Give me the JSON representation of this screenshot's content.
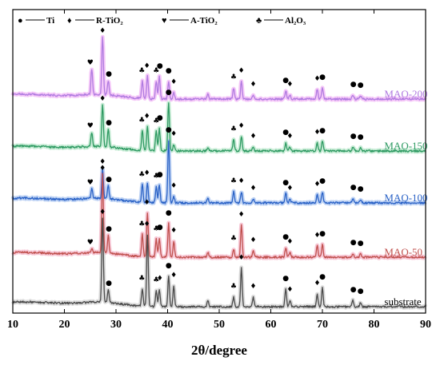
{
  "chart_data": {
    "type": "line",
    "title": "",
    "xlabel": "2θ/degree",
    "ylabel": "",
    "xlim": [
      10,
      90
    ],
    "x_ticks": [
      10,
      20,
      30,
      40,
      50,
      60,
      70,
      80,
      90
    ],
    "y_ticks_shown": false,
    "grid": false,
    "legend_position": "top-left",
    "legend": [
      {
        "symbol": "●",
        "label": "Ti",
        "marker_key": "Ti"
      },
      {
        "symbol": "♦",
        "label": "R-TiO₂",
        "marker_key": "R"
      },
      {
        "symbol": "♥",
        "label": "A-TiO₂",
        "marker_key": "A"
      },
      {
        "symbol": "♣",
        "label": "Al₂O₃",
        "marker_key": "Al"
      }
    ],
    "series": [
      {
        "name": "MAO-200",
        "color": "#b07be0",
        "shade": "#f1b6f6",
        "label_x": 82,
        "baseline": 2.6,
        "noise": 0.025,
        "peaks": [
          {
            "x": 25.3,
            "h": 0.32
          },
          {
            "x": 27.4,
            "h": 0.72
          },
          {
            "x": 28.5,
            "h": 0.18
          },
          {
            "x": 35.1,
            "h": 0.22
          },
          {
            "x": 36.1,
            "h": 0.28
          },
          {
            "x": 37.8,
            "h": 0.22
          },
          {
            "x": 38.4,
            "h": 0.28
          },
          {
            "x": 40.2,
            "h": 0.22
          },
          {
            "x": 41.2,
            "h": 0.08
          },
          {
            "x": 47.8,
            "h": 0.06
          },
          {
            "x": 52.8,
            "h": 0.14
          },
          {
            "x": 54.3,
            "h": 0.22
          },
          {
            "x": 56.6,
            "h": 0.05
          },
          {
            "x": 62.9,
            "h": 0.1
          },
          {
            "x": 63.7,
            "h": 0.05
          },
          {
            "x": 69.0,
            "h": 0.12
          },
          {
            "x": 70.0,
            "h": 0.14
          },
          {
            "x": 75.9,
            "h": 0.05
          },
          {
            "x": 77.4,
            "h": 0.04
          }
        ],
        "markers": [
          {
            "x": 25.0,
            "sym": "♥"
          },
          {
            "x": 27.4,
            "sym": "♦"
          },
          {
            "x": 28.6,
            "sym": "●"
          },
          {
            "x": 35.0,
            "sym": "♣"
          },
          {
            "x": 36.0,
            "sym": "♦"
          },
          {
            "x": 37.8,
            "sym": "♣"
          },
          {
            "x": 38.5,
            "sym": "●"
          },
          {
            "x": 40.2,
            "sym": "●"
          },
          {
            "x": 41.2,
            "sym": "♦"
          },
          {
            "x": 52.8,
            "sym": "♣"
          },
          {
            "x": 54.3,
            "sym": "♦"
          },
          {
            "x": 56.6,
            "sym": "♦"
          },
          {
            "x": 62.9,
            "sym": "●"
          },
          {
            "x": 63.7,
            "sym": "♦"
          },
          {
            "x": 69.0,
            "sym": "♦"
          },
          {
            "x": 70.0,
            "sym": "●"
          },
          {
            "x": 76.0,
            "sym": "●"
          },
          {
            "x": 77.4,
            "sym": "●"
          }
        ]
      },
      {
        "name": "MAO-150",
        "color": "#2e9a62",
        "shade": "#b6e6c8",
        "label_x": 82,
        "baseline": 1.95,
        "noise": 0.025,
        "peaks": [
          {
            "x": 25.3,
            "h": 0.18
          },
          {
            "x": 27.4,
            "h": 0.52
          },
          {
            "x": 28.5,
            "h": 0.22
          },
          {
            "x": 35.1,
            "h": 0.25
          },
          {
            "x": 36.1,
            "h": 0.3
          },
          {
            "x": 37.8,
            "h": 0.24
          },
          {
            "x": 38.4,
            "h": 0.28
          },
          {
            "x": 40.2,
            "h": 0.6
          },
          {
            "x": 41.2,
            "h": 0.08
          },
          {
            "x": 47.8,
            "h": 0.05
          },
          {
            "x": 52.8,
            "h": 0.14
          },
          {
            "x": 54.3,
            "h": 0.18
          },
          {
            "x": 56.6,
            "h": 0.05
          },
          {
            "x": 62.9,
            "h": 0.1
          },
          {
            "x": 63.7,
            "h": 0.05
          },
          {
            "x": 69.0,
            "h": 0.1
          },
          {
            "x": 70.0,
            "h": 0.12
          },
          {
            "x": 75.9,
            "h": 0.05
          },
          {
            "x": 77.4,
            "h": 0.04
          }
        ],
        "markers": [
          {
            "x": 25.0,
            "sym": "♥"
          },
          {
            "x": 27.4,
            "sym": "♦"
          },
          {
            "x": 28.6,
            "sym": "●"
          },
          {
            "x": 35.0,
            "sym": "♣"
          },
          {
            "x": 36.0,
            "sym": "♦"
          },
          {
            "x": 37.8,
            "sym": "♣"
          },
          {
            "x": 38.5,
            "sym": "●"
          },
          {
            "x": 40.2,
            "sym": "●"
          },
          {
            "x": 41.2,
            "sym": "♦"
          },
          {
            "x": 52.8,
            "sym": "♣"
          },
          {
            "x": 54.3,
            "sym": "♦"
          },
          {
            "x": 56.6,
            "sym": "♦"
          },
          {
            "x": 62.9,
            "sym": "●"
          },
          {
            "x": 63.7,
            "sym": "♦"
          },
          {
            "x": 69.0,
            "sym": "♦"
          },
          {
            "x": 70.0,
            "sym": "●"
          },
          {
            "x": 76.0,
            "sym": "●"
          },
          {
            "x": 77.4,
            "sym": "●"
          }
        ]
      },
      {
        "name": "MAO-100",
        "color": "#2a62c6",
        "shade": "#a9c4f0",
        "label_x": 82,
        "baseline": 1.3,
        "noise": 0.025,
        "peaks": [
          {
            "x": 25.3,
            "h": 0.12
          },
          {
            "x": 27.4,
            "h": 0.38
          },
          {
            "x": 28.5,
            "h": 0.16
          },
          {
            "x": 35.1,
            "h": 0.22
          },
          {
            "x": 36.1,
            "h": 0.24
          },
          {
            "x": 37.8,
            "h": 0.2
          },
          {
            "x": 38.4,
            "h": 0.22
          },
          {
            "x": 40.2,
            "h": 0.78
          },
          {
            "x": 41.2,
            "h": 0.08
          },
          {
            "x": 47.8,
            "h": 0.05
          },
          {
            "x": 52.8,
            "h": 0.14
          },
          {
            "x": 54.3,
            "h": 0.14
          },
          {
            "x": 56.6,
            "h": 0.05
          },
          {
            "x": 62.9,
            "h": 0.12
          },
          {
            "x": 63.7,
            "h": 0.05
          },
          {
            "x": 69.0,
            "h": 0.1
          },
          {
            "x": 70.0,
            "h": 0.14
          },
          {
            "x": 75.9,
            "h": 0.06
          },
          {
            "x": 77.4,
            "h": 0.04
          }
        ],
        "markers": [
          {
            "x": 25.0,
            "sym": "♥"
          },
          {
            "x": 27.4,
            "sym": "♦"
          },
          {
            "x": 28.6,
            "sym": "●"
          },
          {
            "x": 35.0,
            "sym": "♣"
          },
          {
            "x": 36.0,
            "sym": "♦"
          },
          {
            "x": 37.8,
            "sym": "♣"
          },
          {
            "x": 38.5,
            "sym": "●"
          },
          {
            "x": 40.2,
            "sym": "●"
          },
          {
            "x": 41.2,
            "sym": "♦"
          },
          {
            "x": 52.8,
            "sym": "♣"
          },
          {
            "x": 54.3,
            "sym": "♦"
          },
          {
            "x": 56.6,
            "sym": "♦"
          },
          {
            "x": 62.9,
            "sym": "●"
          },
          {
            "x": 63.7,
            "sym": "♦"
          },
          {
            "x": 69.0,
            "sym": "♦"
          },
          {
            "x": 70.0,
            "sym": "●"
          },
          {
            "x": 76.0,
            "sym": "●"
          },
          {
            "x": 77.4,
            "sym": "●"
          }
        ]
      },
      {
        "name": "MAO-50",
        "color": "#c0504d",
        "shade": "#f4b6c8",
        "label_x": 82,
        "baseline": 0.62,
        "noise": 0.025,
        "peaks": [
          {
            "x": 25.3,
            "h": 0.05
          },
          {
            "x": 27.4,
            "h": 0.98
          },
          {
            "x": 28.5,
            "h": 0.22
          },
          {
            "x": 35.1,
            "h": 0.28
          },
          {
            "x": 36.1,
            "h": 0.55
          },
          {
            "x": 37.8,
            "h": 0.22
          },
          {
            "x": 38.4,
            "h": 0.24
          },
          {
            "x": 40.2,
            "h": 0.42
          },
          {
            "x": 41.2,
            "h": 0.2
          },
          {
            "x": 47.8,
            "h": 0.06
          },
          {
            "x": 52.8,
            "h": 0.1
          },
          {
            "x": 54.3,
            "h": 0.4
          },
          {
            "x": 56.6,
            "h": 0.08
          },
          {
            "x": 62.9,
            "h": 0.12
          },
          {
            "x": 63.7,
            "h": 0.06
          },
          {
            "x": 69.0,
            "h": 0.14
          },
          {
            "x": 70.0,
            "h": 0.16
          },
          {
            "x": 75.9,
            "h": 0.05
          },
          {
            "x": 77.4,
            "h": 0.04
          }
        ],
        "markers": [
          {
            "x": 25.0,
            "sym": "♥"
          },
          {
            "x": 27.4,
            "sym": "♦"
          },
          {
            "x": 28.6,
            "sym": "●"
          },
          {
            "x": 35.0,
            "sym": "♣"
          },
          {
            "x": 36.0,
            "sym": "♦"
          },
          {
            "x": 37.8,
            "sym": "♣"
          },
          {
            "x": 38.5,
            "sym": "●"
          },
          {
            "x": 40.2,
            "sym": "●"
          },
          {
            "x": 41.2,
            "sym": "♦"
          },
          {
            "x": 52.8,
            "sym": "♣"
          },
          {
            "x": 54.3,
            "sym": "♦"
          },
          {
            "x": 56.6,
            "sym": "♦"
          },
          {
            "x": 62.9,
            "sym": "●"
          },
          {
            "x": 63.7,
            "sym": "♦"
          },
          {
            "x": 69.0,
            "sym": "♦"
          },
          {
            "x": 70.0,
            "sym": "●"
          },
          {
            "x": 76.0,
            "sym": "●"
          },
          {
            "x": 77.4,
            "sym": "●"
          }
        ]
      },
      {
        "name": "substrate",
        "color": "#4a4a4a",
        "shade": "#cfcfcf",
        "label_x": 82,
        "baseline": 0.0,
        "noise": 0.025,
        "peaks": [
          {
            "x": 27.4,
            "h": 1.05
          },
          {
            "x": 28.5,
            "h": 0.16
          },
          {
            "x": 35.1,
            "h": 0.22
          },
          {
            "x": 36.1,
            "h": 0.9
          },
          {
            "x": 37.8,
            "h": 0.2
          },
          {
            "x": 38.4,
            "h": 0.22
          },
          {
            "x": 40.2,
            "h": 0.38
          },
          {
            "x": 41.2,
            "h": 0.26
          },
          {
            "x": 47.8,
            "h": 0.08
          },
          {
            "x": 52.8,
            "h": 0.12
          },
          {
            "x": 54.3,
            "h": 0.48
          },
          {
            "x": 56.6,
            "h": 0.12
          },
          {
            "x": 62.9,
            "h": 0.22
          },
          {
            "x": 63.7,
            "h": 0.08
          },
          {
            "x": 69.0,
            "h": 0.16
          },
          {
            "x": 70.0,
            "h": 0.24
          },
          {
            "x": 75.9,
            "h": 0.08
          },
          {
            "x": 77.4,
            "h": 0.06
          }
        ],
        "markers": [
          {
            "x": 27.4,
            "sym": "♦"
          },
          {
            "x": 28.6,
            "sym": "●"
          },
          {
            "x": 35.0,
            "sym": "♣"
          },
          {
            "x": 36.0,
            "sym": "♦"
          },
          {
            "x": 37.8,
            "sym": "♣"
          },
          {
            "x": 38.5,
            "sym": "♦"
          },
          {
            "x": 40.2,
            "sym": "●"
          },
          {
            "x": 41.2,
            "sym": "♦"
          },
          {
            "x": 52.8,
            "sym": "♣"
          },
          {
            "x": 54.3,
            "sym": "♦"
          },
          {
            "x": 56.6,
            "sym": "♦"
          },
          {
            "x": 62.9,
            "sym": "●"
          },
          {
            "x": 63.7,
            "sym": "♦"
          },
          {
            "x": 69.0,
            "sym": "♦"
          },
          {
            "x": 70.0,
            "sym": "●"
          },
          {
            "x": 76.0,
            "sym": "●"
          },
          {
            "x": 77.4,
            "sym": "●"
          }
        ]
      }
    ]
  }
}
